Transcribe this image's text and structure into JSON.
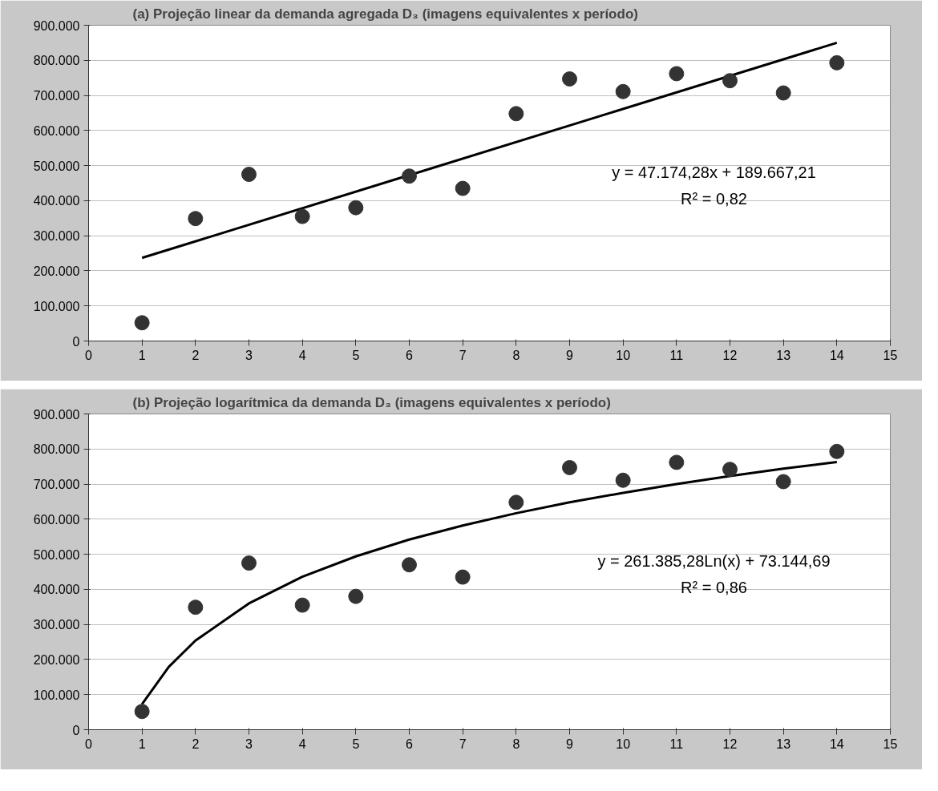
{
  "chart_data": [
    {
      "type": "scatter",
      "title": "(a) Projeção linear da demanda agregada D₃ (imagens equivalentes x período)",
      "x": [
        1,
        2,
        3,
        4,
        5,
        6,
        7,
        8,
        9,
        10,
        11,
        12,
        13,
        14
      ],
      "series": [
        {
          "color": "#333333",
          "marker": "circle",
          "values": [
            52000,
            349000,
            475000,
            355000,
            380000,
            470000,
            435000,
            648000,
            747000,
            711000,
            762000,
            742000,
            707000,
            793000
          ]
        },
        {
          "type": "line",
          "color": "#000000",
          "line_style": "solid",
          "x": [
            1,
            14
          ],
          "values": [
            237000,
            850000
          ]
        }
      ],
      "xlim": [
        0,
        15
      ],
      "xticks": [
        0,
        1,
        2,
        3,
        4,
        5,
        6,
        7,
        8,
        9,
        10,
        11,
        12,
        13,
        14,
        15
      ],
      "ylim": [
        0,
        900000
      ],
      "yticks": [
        {
          "value": 0,
          "label": "0"
        },
        {
          "value": 100000,
          "label": "100.000"
        },
        {
          "value": 200000,
          "label": "200.000"
        },
        {
          "value": 300000,
          "label": "300.000"
        },
        {
          "value": 400000,
          "label": "400.000"
        },
        {
          "value": 500000,
          "label": "500.000"
        },
        {
          "value": 600000,
          "label": "600.000"
        },
        {
          "value": 700000,
          "label": "700.000"
        },
        {
          "value": 800000,
          "label": "800.000"
        },
        {
          "value": 900000,
          "label": "900.000"
        }
      ],
      "grid": "y",
      "annotations": [
        "y = 47.174,28x + 189.667,21",
        "R² = 0,82"
      ]
    },
    {
      "type": "scatter",
      "title": "(b) Projeção logarítmica da demanda D₃ (imagens equivalentes x período)",
      "x": [
        1,
        2,
        3,
        4,
        5,
        6,
        7,
        8,
        9,
        10,
        11,
        12,
        13,
        14
      ],
      "series": [
        {
          "color": "#333333",
          "marker": "circle",
          "values": [
            52000,
            349000,
            475000,
            355000,
            380000,
            470000,
            435000,
            648000,
            747000,
            711000,
            762000,
            742000,
            707000,
            793000
          ]
        },
        {
          "type": "line",
          "color": "#000000",
          "line_style": "solid",
          "x": [
            1,
            1.5,
            2,
            3,
            4,
            5,
            6,
            7,
            8,
            9,
            10,
            11,
            12,
            13,
            14
          ],
          "values": [
            73000,
            179000,
            254000,
            360000,
            436000,
            494000,
            542000,
            582000,
            617000,
            648000,
            675000,
            700000,
            723000,
            744000,
            763000
          ]
        }
      ],
      "xlim": [
        0,
        15
      ],
      "xticks": [
        0,
        1,
        2,
        3,
        4,
        5,
        6,
        7,
        8,
        9,
        10,
        11,
        12,
        13,
        14,
        15
      ],
      "ylim": [
        0,
        900000
      ],
      "yticks": [
        {
          "value": 0,
          "label": "0"
        },
        {
          "value": 100000,
          "label": "100.000"
        },
        {
          "value": 200000,
          "label": "200.000"
        },
        {
          "value": 300000,
          "label": "300.000"
        },
        {
          "value": 400000,
          "label": "400.000"
        },
        {
          "value": 500000,
          "label": "500.000"
        },
        {
          "value": 600000,
          "label": "600.000"
        },
        {
          "value": 700000,
          "label": "700.000"
        },
        {
          "value": 800000,
          "label": "800.000"
        },
        {
          "value": 900000,
          "label": "900.000"
        }
      ],
      "grid": "y",
      "annotations": [
        "y = 261.385,28Ln(x) + 73.144,69",
        "R² = 0,86"
      ]
    }
  ]
}
